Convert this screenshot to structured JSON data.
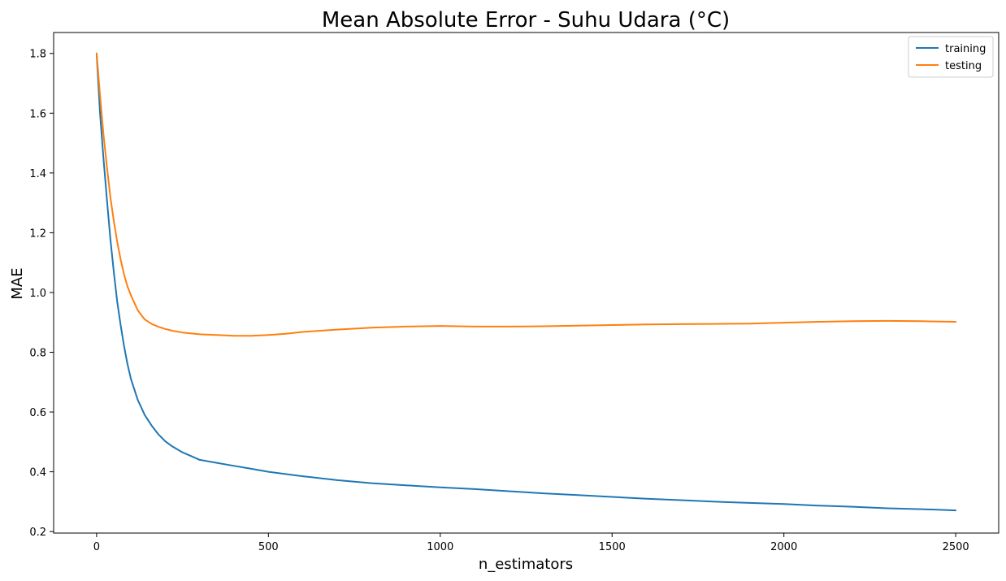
{
  "chart_data": {
    "type": "line",
    "title": "Mean Absolute Error - Suhu Udara (°C)",
    "xlabel": "n_estimators",
    "ylabel": "MAE",
    "xlim": [
      -125,
      2625
    ],
    "ylim": [
      0.195,
      1.87
    ],
    "xticks": [
      0,
      500,
      1000,
      1500,
      2000,
      2500
    ],
    "yticks": [
      0.2,
      0.4,
      0.6,
      0.8,
      1.0,
      1.2,
      1.4,
      1.6,
      1.8
    ],
    "xtick_labels": [
      "0",
      "500",
      "1000",
      "1500",
      "2000",
      "2500"
    ],
    "ytick_labels": [
      "0.2",
      "0.4",
      "0.6",
      "0.8",
      "1.0",
      "1.2",
      "1.4",
      "1.6",
      "1.8"
    ],
    "grid": false,
    "legend_position": "top-right",
    "series": [
      {
        "name": "training",
        "color": "#1f77b4",
        "x": [
          0,
          10,
          20,
          30,
          40,
          50,
          60,
          70,
          80,
          90,
          100,
          120,
          140,
          160,
          180,
          200,
          220,
          250,
          280,
          300,
          350,
          400,
          450,
          500,
          600,
          700,
          800,
          900,
          1000,
          1100,
          1200,
          1300,
          1400,
          1500,
          1600,
          1700,
          1800,
          1900,
          2000,
          2100,
          2200,
          2300,
          2400,
          2500
        ],
        "y": [
          1.8,
          1.6,
          1.45,
          1.31,
          1.18,
          1.07,
          0.97,
          0.89,
          0.82,
          0.76,
          0.71,
          0.64,
          0.59,
          0.555,
          0.525,
          0.502,
          0.485,
          0.465,
          0.45,
          0.44,
          0.43,
          0.42,
          0.41,
          0.4,
          0.385,
          0.372,
          0.362,
          0.355,
          0.348,
          0.342,
          0.335,
          0.328,
          0.322,
          0.316,
          0.31,
          0.305,
          0.3,
          0.296,
          0.292,
          0.287,
          0.283,
          0.278,
          0.275,
          0.271
        ]
      },
      {
        "name": "testing",
        "color": "#ff7f0e",
        "x": [
          0,
          10,
          20,
          30,
          40,
          50,
          60,
          70,
          80,
          90,
          100,
          120,
          140,
          160,
          180,
          200,
          220,
          250,
          300,
          350,
          400,
          450,
          500,
          550,
          600,
          700,
          800,
          900,
          1000,
          1100,
          1200,
          1300,
          1400,
          1500,
          1600,
          1700,
          1800,
          1900,
          2000,
          2100,
          2200,
          2300,
          2400,
          2500
        ],
        "y": [
          1.8,
          1.66,
          1.53,
          1.42,
          1.32,
          1.24,
          1.17,
          1.11,
          1.06,
          1.02,
          0.99,
          0.94,
          0.91,
          0.895,
          0.885,
          0.878,
          0.872,
          0.866,
          0.86,
          0.858,
          0.855,
          0.855,
          0.858,
          0.862,
          0.868,
          0.876,
          0.882,
          0.886,
          0.888,
          0.886,
          0.886,
          0.887,
          0.889,
          0.891,
          0.893,
          0.894,
          0.895,
          0.896,
          0.899,
          0.902,
          0.904,
          0.905,
          0.904,
          0.902
        ]
      }
    ]
  }
}
